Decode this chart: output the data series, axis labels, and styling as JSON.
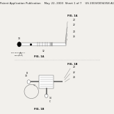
{
  "bg_color": "#f2f0ec",
  "header_color": "#d4d0c8",
  "header_text": "Patent Application Publication    May. 22, 2003  Sheet 1 of 7    US 2003/0094358 A1",
  "header_fontsize": 2.8,
  "fig_bg": "#f2f0ec",
  "gray": "#666666",
  "dark": "#111111",
  "light_gray": "#999999"
}
